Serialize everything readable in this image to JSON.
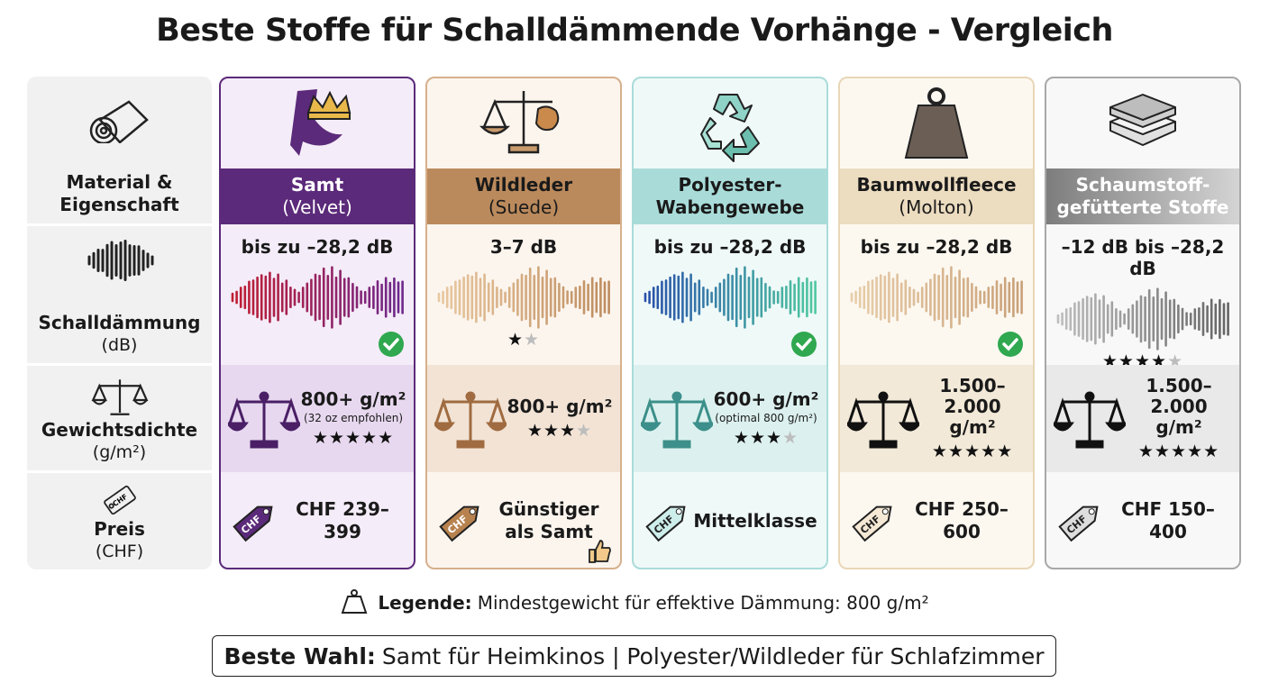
{
  "title": "Beste Stoffe für Schalldämmende Vorhänge - Vergleich",
  "row_labels": [
    {
      "lines": [
        "Material &",
        "Eigenschaft"
      ]
    },
    {
      "lines": [
        "Schalldämmung"
      ],
      "unit": "(dB)"
    },
    {
      "lines": [
        "Gewichtsdichte"
      ],
      "unit": "(g/m²)"
    },
    {
      "lines": [
        "Preis"
      ],
      "unit": "(CHF)"
    }
  ],
  "tag_label": "CHF",
  "columns": [
    {
      "name": [
        "Samt"
      ],
      "subtitle": "(Velvet)",
      "sound": "bis zu –28,2 dB",
      "sound_check": true,
      "weight": [
        "800+ g/m²"
      ],
      "weight_note": "(32 oz empfohlen)",
      "weight_stars": {
        "filled": 5,
        "total": 5
      },
      "price": [
        "CHF 239–399"
      ]
    },
    {
      "name": [
        "Wildleder"
      ],
      "subtitle": "(Suede)",
      "sound": "3–7 dB",
      "sound_stars": {
        "filled": 1,
        "total": 2
      },
      "weight": [
        "800+ g/m²"
      ],
      "weight_stars": {
        "filled": 3,
        "total": 4
      },
      "price": [
        "Günstiger",
        "als Samt"
      ]
    },
    {
      "name": [
        "Polyester-",
        "Wabengewebe"
      ],
      "sound": "bis zu –28,2 dB",
      "sound_check": true,
      "weight": [
        "600+ g/m²"
      ],
      "weight_note": "(optimal 800 g/m²)",
      "weight_stars": {
        "filled": 3,
        "total": 4
      },
      "price": [
        "Mittelklasse"
      ]
    },
    {
      "name": [
        "Baumwollfleece"
      ],
      "subtitle": "(Molton)",
      "sound": "bis zu –28,2 dB",
      "sound_check": true,
      "weight": [
        "1.500–2.000",
        "g/m²"
      ],
      "weight_stars": {
        "filled": 5,
        "total": 5
      },
      "price": [
        "CHF 250–600"
      ]
    },
    {
      "name": [
        "Schaumstoff-",
        "gefütterte Stoffe"
      ],
      "sound": "–12 dB bis –28,2 dB",
      "sound_stars": {
        "filled": 4,
        "total": 5
      },
      "weight": [
        "1.500–2.000",
        "g/m²"
      ],
      "weight_stars": {
        "filled": 5,
        "total": 5
      },
      "price": [
        "CHF 150–400"
      ]
    }
  ],
  "legend": {
    "label": "Legende:",
    "text": "Mindestgewicht für effektive Dämmung: 800 g/m²"
  },
  "footer": {
    "label": "Beste Wahl:",
    "text": "Samt für Heimkinos | Polyester/Wildleder für Schlafzimmer"
  }
}
